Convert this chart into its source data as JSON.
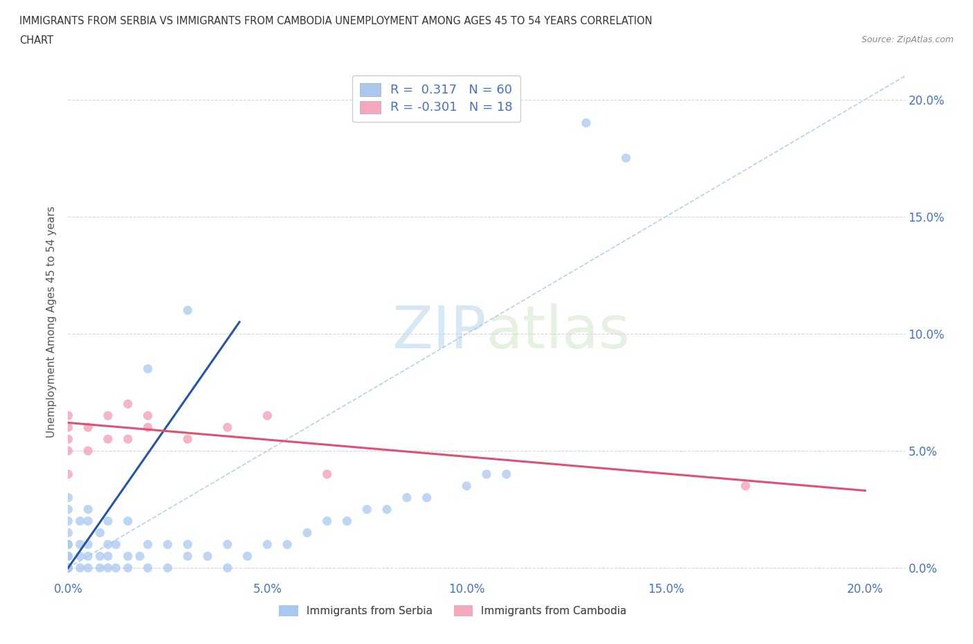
{
  "title_line1": "IMMIGRANTS FROM SERBIA VS IMMIGRANTS FROM CAMBODIA UNEMPLOYMENT AMONG AGES 45 TO 54 YEARS CORRELATION",
  "title_line2": "CHART",
  "source": "Source: ZipAtlas.com",
  "ylabel": "Unemployment Among Ages 45 to 54 years",
  "serbia_R": 0.317,
  "serbia_N": 60,
  "cambodia_R": -0.301,
  "cambodia_N": 18,
  "serbia_color": "#a8c8f0",
  "cambodia_color": "#f4a8bc",
  "serbia_trend_color": "#2255aa",
  "cambodia_trend_color": "#e05070",
  "diag_color": "#aaccee",
  "background_color": "#ffffff",
  "xlim": [
    0.0,
    0.21
  ],
  "ylim": [
    -0.005,
    0.215
  ],
  "xticks": [
    0.0,
    0.05,
    0.1,
    0.15,
    0.2
  ],
  "yticks": [
    0.0,
    0.05,
    0.1,
    0.15,
    0.2
  ],
  "serbia_x": [
    0.0,
    0.0,
    0.0,
    0.0,
    0.0,
    0.0,
    0.0,
    0.0,
    0.0,
    0.0,
    0.0,
    0.0,
    0.003,
    0.003,
    0.003,
    0.003,
    0.005,
    0.005,
    0.005,
    0.005,
    0.005,
    0.008,
    0.008,
    0.008,
    0.01,
    0.01,
    0.01,
    0.01,
    0.012,
    0.012,
    0.015,
    0.015,
    0.015,
    0.018,
    0.02,
    0.02,
    0.025,
    0.025,
    0.03,
    0.03,
    0.035,
    0.04,
    0.04,
    0.045,
    0.05,
    0.055,
    0.06,
    0.065,
    0.07,
    0.075,
    0.08,
    0.085,
    0.09,
    0.1,
    0.105,
    0.11,
    0.13,
    0.14,
    0.02,
    0.03
  ],
  "serbia_y": [
    0.0,
    0.0,
    0.0,
    0.0,
    0.005,
    0.005,
    0.01,
    0.01,
    0.015,
    0.02,
    0.025,
    0.03,
    0.0,
    0.005,
    0.01,
    0.02,
    0.0,
    0.005,
    0.01,
    0.02,
    0.025,
    0.0,
    0.005,
    0.015,
    0.0,
    0.005,
    0.01,
    0.02,
    0.0,
    0.01,
    0.0,
    0.005,
    0.02,
    0.005,
    0.0,
    0.01,
    0.0,
    0.01,
    0.005,
    0.01,
    0.005,
    0.0,
    0.01,
    0.005,
    0.01,
    0.01,
    0.015,
    0.02,
    0.02,
    0.025,
    0.025,
    0.03,
    0.03,
    0.035,
    0.04,
    0.04,
    0.19,
    0.175,
    0.085,
    0.11
  ],
  "cambodia_x": [
    0.0,
    0.0,
    0.0,
    0.0,
    0.0,
    0.005,
    0.005,
    0.01,
    0.01,
    0.015,
    0.015,
    0.02,
    0.02,
    0.03,
    0.04,
    0.05,
    0.065,
    0.17
  ],
  "cambodia_y": [
    0.04,
    0.05,
    0.055,
    0.06,
    0.065,
    0.05,
    0.06,
    0.055,
    0.065,
    0.055,
    0.07,
    0.06,
    0.065,
    0.055,
    0.06,
    0.065,
    0.04,
    0.035
  ],
  "serbia_trend_x": [
    0.0,
    0.043
  ],
  "serbia_trend_y": [
    0.0,
    0.105
  ],
  "cambodia_trend_x": [
    0.0,
    0.2
  ],
  "cambodia_trend_y": [
    0.062,
    0.033
  ]
}
